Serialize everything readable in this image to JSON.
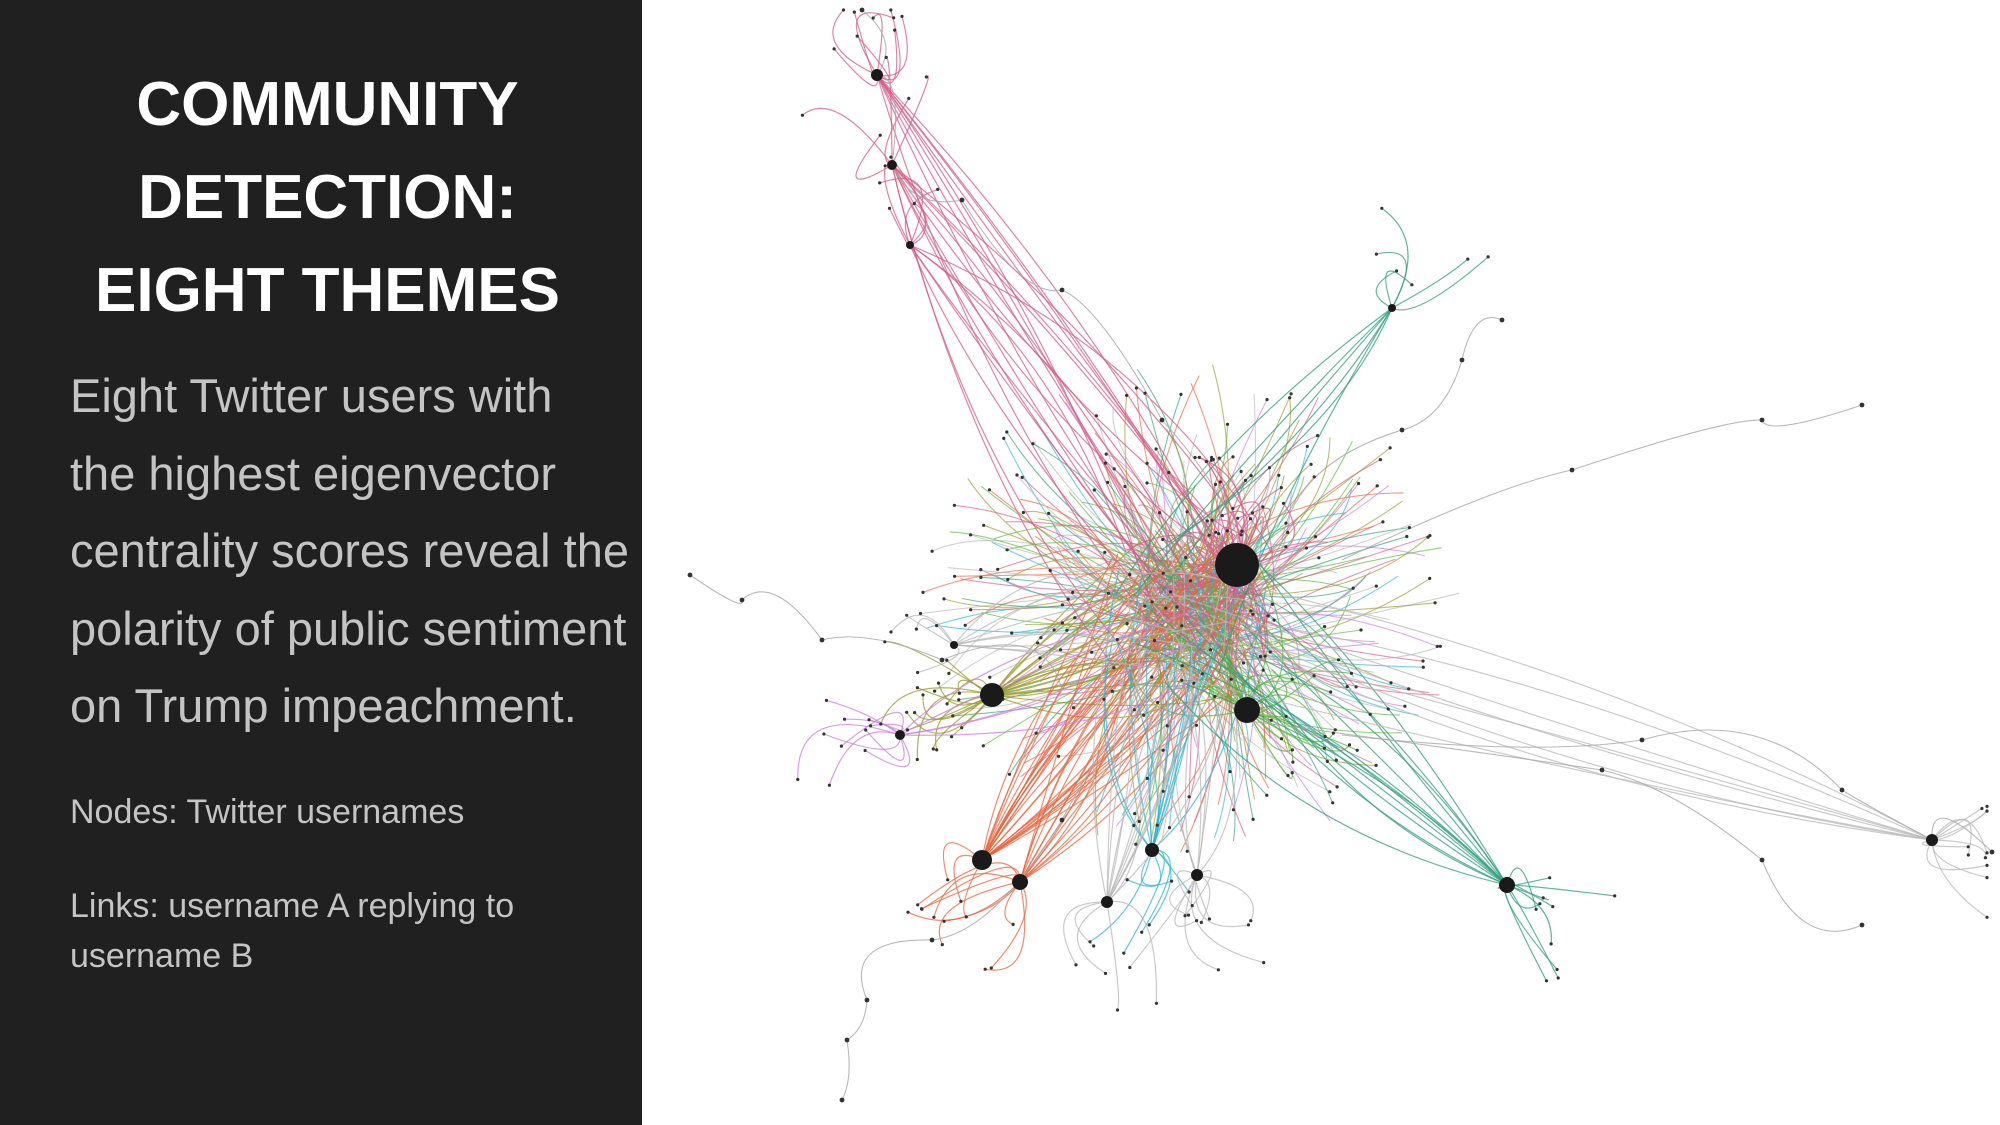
{
  "slide": {
    "title_lines": [
      "COMMUNITY",
      "DETECTION:",
      "EIGHT THEMES"
    ],
    "body": "Eight Twitter users with the highest eigenvector centrality scores reveal the polarity of public sentiment on Trump impeachment.",
    "nodes_note": "Nodes: Twitter usernames",
    "links_note": "Links: username A replying to username B"
  },
  "network": {
    "community_colors": [
      "#d45c86",
      "#2fb3d6",
      "#58b83a",
      "#cf7de0",
      "#e8663f",
      "#9a9a2a",
      "#2f9e7c",
      "#b8b8b8"
    ],
    "hub_color": "#1a1a1a",
    "background": "#ffffff"
  }
}
